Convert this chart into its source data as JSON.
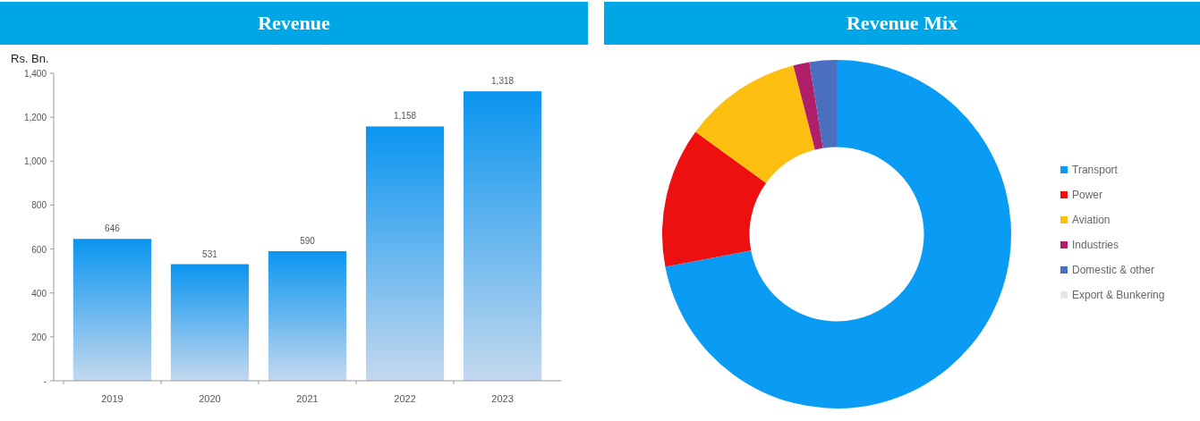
{
  "chart_data": [
    {
      "type": "bar",
      "title": "Revenue",
      "ylabel": "Rs. Bn.",
      "categories": [
        "2019",
        "2020",
        "2021",
        "2022",
        "2023"
      ],
      "values": [
        646,
        531,
        590,
        1158,
        1318
      ],
      "color": "#0a95f0",
      "ylim": [
        0,
        1400
      ],
      "yticks": [
        {
          "value": 0,
          "label": "-"
        },
        {
          "value": 200,
          "label": "200"
        },
        {
          "value": 400,
          "label": "400"
        },
        {
          "value": 600,
          "label": "600"
        },
        {
          "value": 800,
          "label": "800"
        },
        {
          "value": 1000,
          "label": "1,000"
        },
        {
          "value": 1200,
          "label": "1,200"
        },
        {
          "value": 1400,
          "label": "1,400"
        }
      ],
      "value_labels": [
        "646",
        "531",
        "590",
        "1,158",
        "1,318"
      ],
      "grid": false
    },
    {
      "type": "donut",
      "title": "Revenue Mix",
      "categories": [
        "Transport",
        "Power",
        "Aviation",
        "Industries",
        "Domestic & other",
        "Export & Bunkering"
      ],
      "values": [
        72,
        13,
        11,
        1.5,
        2.5,
        0
      ],
      "colors": [
        "#0a9cf5",
        "#ee1010",
        "#fcbf10",
        "#b0206a",
        "#4a6fc0",
        "#e6e6e6"
      ],
      "legend": "right"
    }
  ]
}
